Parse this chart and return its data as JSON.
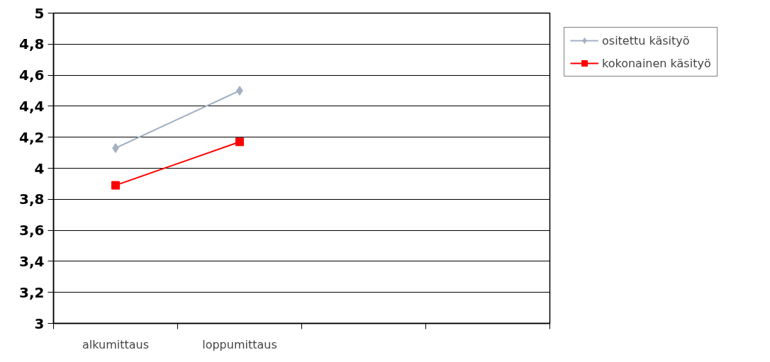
{
  "chart_data": {
    "type": "line",
    "categories": [
      "alkumittaus",
      "loppumittaus",
      null,
      null
    ],
    "series": [
      {
        "name": "ositettu käsityö",
        "color": "#a3b1c2",
        "marker": "diamond",
        "values": [
          4.13,
          4.5,
          null,
          null
        ]
      },
      {
        "name": "kokonainen käsityö",
        "color": "#ff0000",
        "marker": "square",
        "values": [
          3.89,
          4.17,
          null,
          null
        ]
      }
    ],
    "ylim": [
      3,
      5
    ],
    "yticks": [
      3,
      {
        "value": 3.2,
        "label": "3,2"
      },
      {
        "value": 3.4,
        "label": "3,4"
      },
      {
        "value": 3.6,
        "label": "3,6"
      },
      {
        "value": 3.8,
        "label": "3,8"
      },
      4,
      {
        "value": 4.2,
        "label": "4,2"
      },
      {
        "value": 4.4,
        "label": "4,4"
      },
      {
        "value": 4.6,
        "label": "4,6"
      },
      {
        "value": 4.8,
        "label": "4,8"
      },
      5
    ],
    "grid": "y",
    "legend": "right"
  }
}
